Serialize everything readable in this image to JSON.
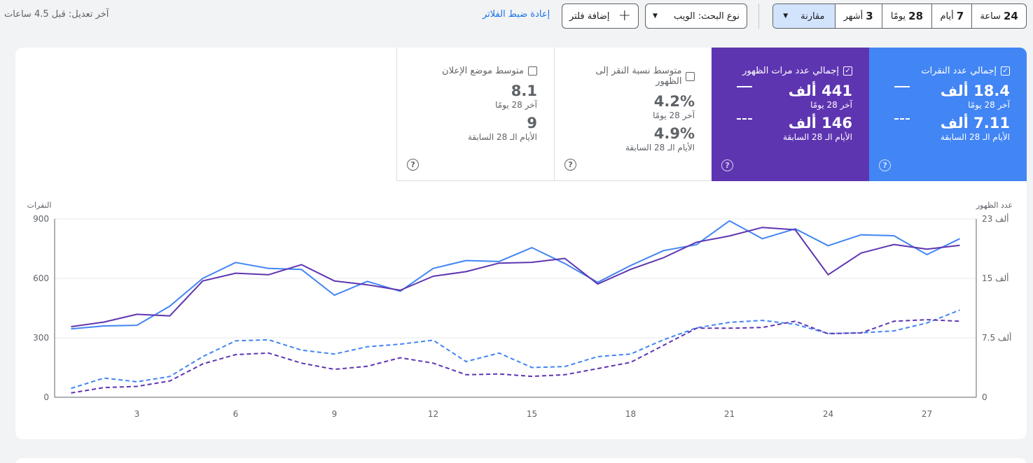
{
  "toolbar": {
    "last_update": "آخر تعديل: قبل 4.5 ساعات",
    "reset_filters": "إعادة ضبط الفلاتر",
    "add_filter": "إضافة فلتر",
    "search_type": "نوع البحث: الويب",
    "date_ranges": [
      {
        "num": "24",
        "label": "ساعة"
      },
      {
        "num": "7",
        "label": "أيام"
      },
      {
        "num": "28",
        "label": "يومًا"
      },
      {
        "num": "3",
        "label": "أشهر"
      }
    ],
    "compare": "مقارنة"
  },
  "metrics": {
    "clicks": {
      "label": "إجمالي عدد النقرات",
      "current": "18.4 ألف",
      "current_period": "آخر 28 يومًا",
      "previous": "7.11 ألف",
      "previous_period": "الأيام الـ 28 السابقة",
      "checked": true
    },
    "impressions": {
      "label": "إجمالي عدد مرات الظهور",
      "current": "441 ألف",
      "current_period": "آخر 28 يومًا",
      "previous": "146 ألف",
      "previous_period": "الأيام الـ 28 السابقة",
      "checked": true
    },
    "ctr": {
      "label": "متوسط نسبة النقر إلى الظهور",
      "current": "4.2%",
      "current_period": "آخر 28 يومًا",
      "previous": "4.9%",
      "previous_period": "الأيام الـ 28 السابقة",
      "checked": false
    },
    "position": {
      "label": "متوسط موضع الإعلان",
      "current": "8.1",
      "current_period": "آخر 28 يومًا",
      "previous": "9",
      "previous_period": "الأيام الـ 28 السابقة",
      "checked": false
    },
    "help_glyph": "?"
  },
  "chart_data": {
    "type": "line",
    "left_axis_title": "النقرات",
    "right_axis_title": "عدد الظهور",
    "left_ticks": [
      "900",
      "600",
      "300",
      "0"
    ],
    "right_ticks": [
      "23 ألف",
      "15 ألف",
      "7.5 ألف",
      "0"
    ],
    "left_ylim": [
      0,
      900
    ],
    "right_ylim": [
      0,
      23000
    ],
    "x_ticks": [
      "3",
      "6",
      "9",
      "12",
      "15",
      "18",
      "21",
      "24",
      "27"
    ],
    "x": [
      1,
      2,
      3,
      4,
      5,
      6,
      7,
      8,
      9,
      10,
      11,
      12,
      13,
      14,
      15,
      16,
      17,
      18,
      19,
      20,
      21,
      22,
      23,
      24,
      25,
      26,
      27,
      28
    ],
    "series": [
      {
        "key": "clicks_current",
        "axis": "left",
        "color": "#4285f4",
        "dashed": false,
        "values": [
          345,
          360,
          363,
          460,
          600,
          680,
          650,
          645,
          515,
          585,
          535,
          650,
          690,
          685,
          755,
          675,
          580,
          665,
          740,
          770,
          890,
          800,
          850,
          765,
          820,
          815,
          720,
          800
        ]
      },
      {
        "key": "impressions_current",
        "axis": "right",
        "color": "#5e35b1",
        "dashed": false,
        "values": [
          9100,
          9700,
          10700,
          10500,
          15000,
          16000,
          15800,
          17100,
          15000,
          14500,
          13800,
          15600,
          16200,
          17300,
          17400,
          17900,
          14600,
          16500,
          18000,
          20000,
          20800,
          21900,
          21600,
          15800,
          18600,
          19700,
          19100,
          19600
        ]
      },
      {
        "key": "clicks_previous",
        "axis": "left",
        "color": "#4285f4",
        "dashed": true,
        "values": [
          45,
          97,
          78,
          105,
          205,
          285,
          290,
          238,
          218,
          255,
          268,
          288,
          180,
          223,
          150,
          155,
          205,
          218,
          290,
          350,
          378,
          388,
          368,
          322,
          325,
          335,
          375,
          440
        ]
      },
      {
        "key": "impressions_previous",
        "axis": "right",
        "color": "#5e35b1",
        "dashed": true,
        "values": [
          550,
          1250,
          1400,
          2100,
          4300,
          5500,
          5700,
          4400,
          3600,
          4000,
          5100,
          4400,
          2900,
          3000,
          2700,
          2900,
          3700,
          4500,
          6700,
          8900,
          8900,
          9000,
          9800,
          8200,
          8300,
          9800,
          10000,
          9800
        ]
      }
    ]
  }
}
